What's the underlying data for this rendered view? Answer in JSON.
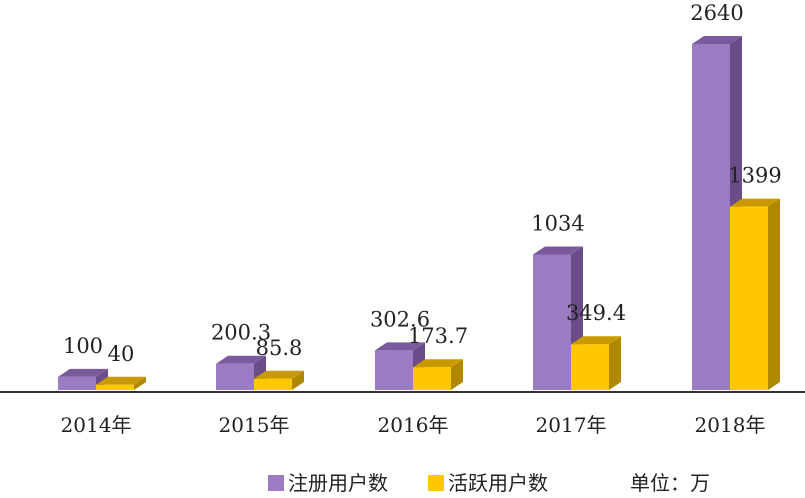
{
  "chart_data": {
    "type": "bar",
    "categories": [
      "2014年",
      "2015年",
      "2016年",
      "2017年",
      "2018年"
    ],
    "series": [
      {
        "name": "注册用户数",
        "values": [
          100,
          200.3,
          302.6,
          1034,
          2640
        ],
        "labels": [
          "100",
          "200.3",
          "302.6",
          "1034",
          "2640"
        ],
        "color": "#9b7cc2"
      },
      {
        "name": "活跃用户数",
        "values": [
          40,
          85.8,
          173.7,
          349.4,
          1399
        ],
        "labels": [
          "40",
          "85.8",
          "173.7",
          "349.4",
          "1399"
        ],
        "color": "#ffc800"
      }
    ],
    "unit_note": "单位：万",
    "ylim": [
      0,
      2640
    ],
    "grid": false,
    "legend": "bottom",
    "style": "3d-bar"
  }
}
